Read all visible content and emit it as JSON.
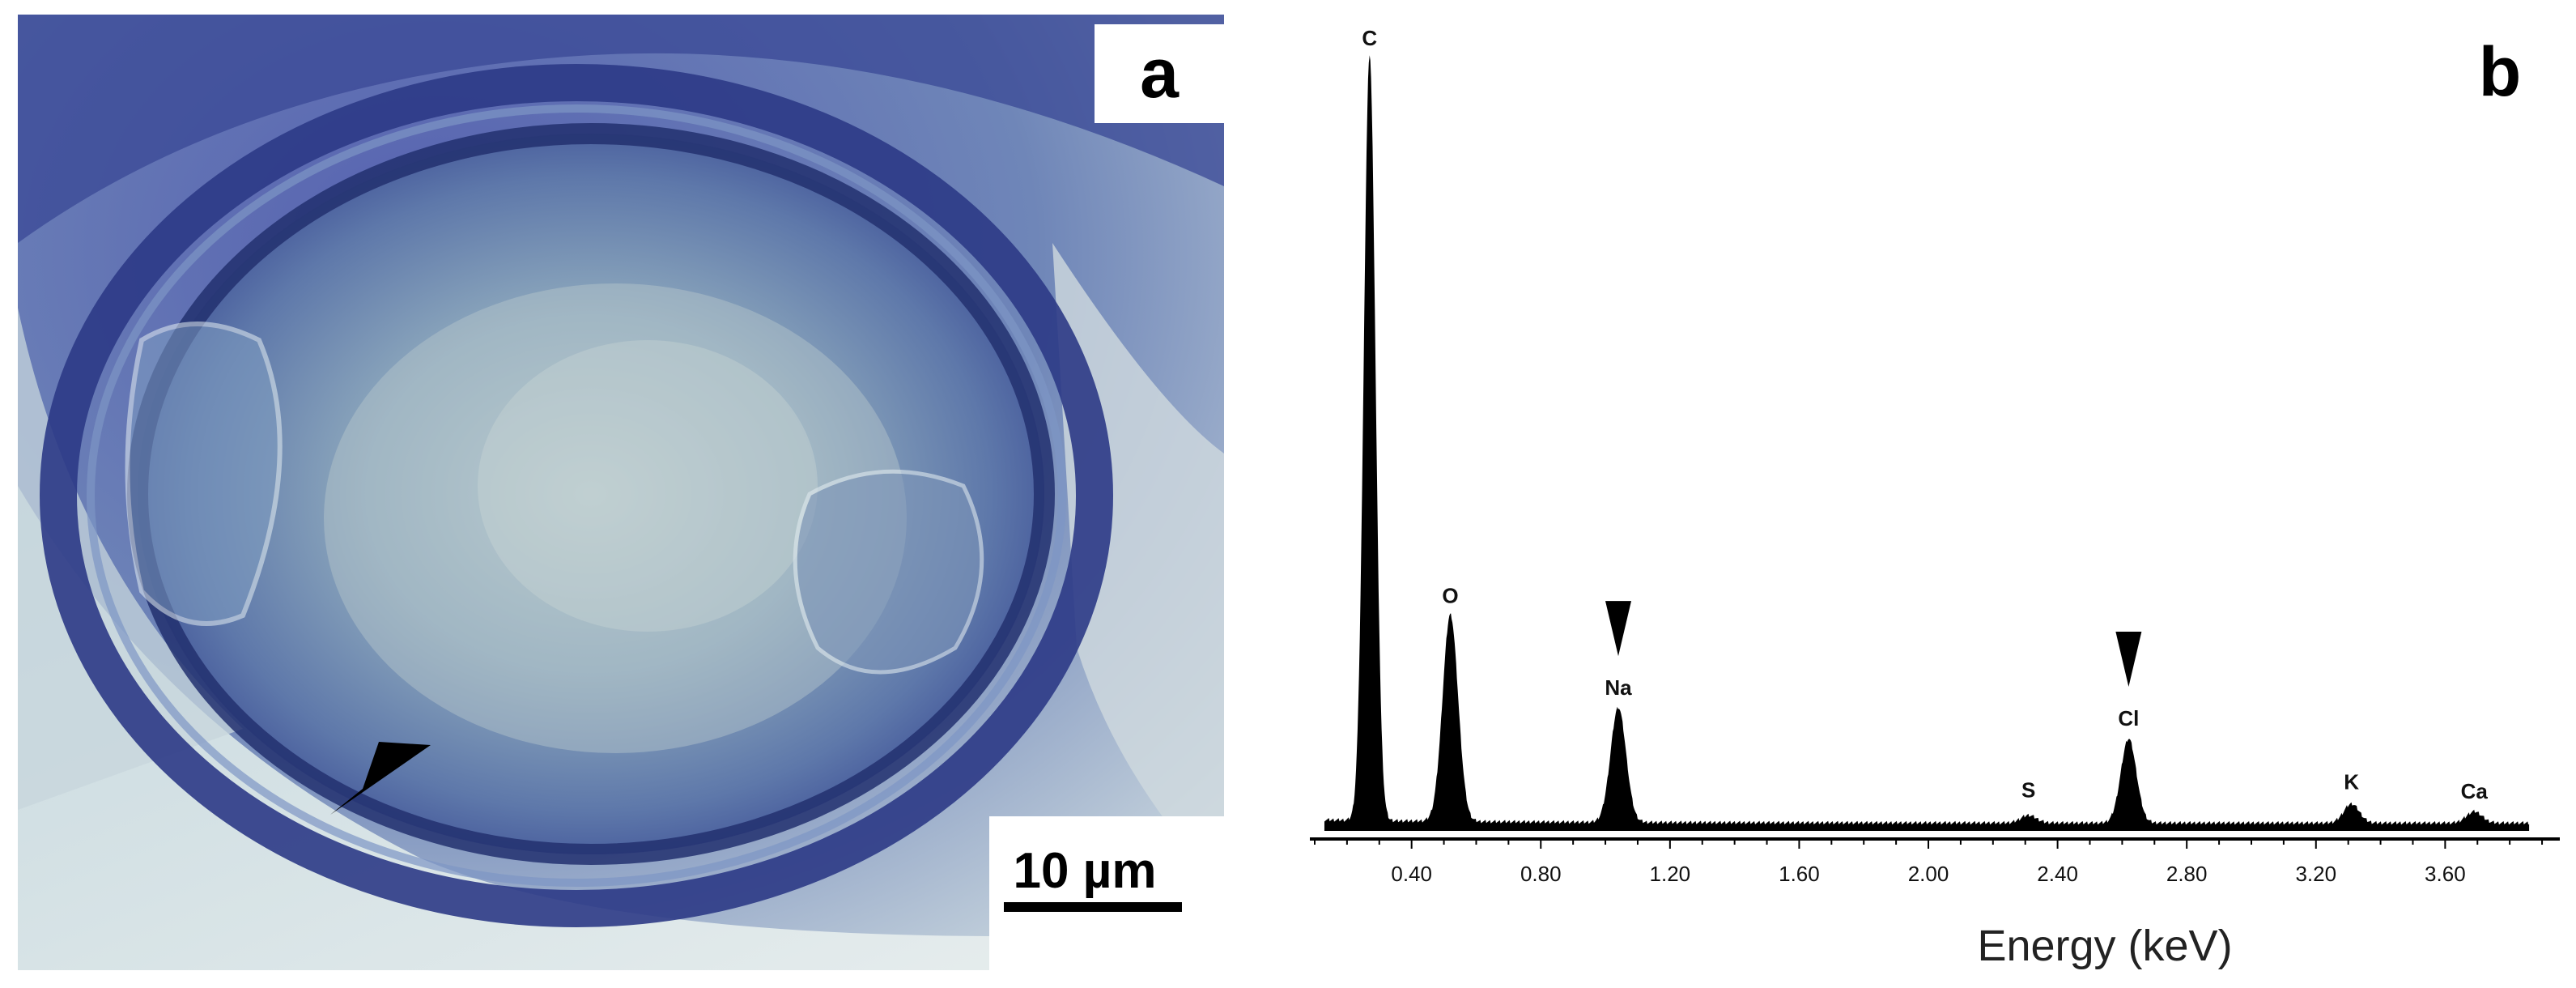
{
  "panel_a": {
    "label": "a",
    "scale_bar_text": "10 µm"
  },
  "panel_b": {
    "label": "b"
  },
  "chart_data": {
    "type": "line",
    "title": "",
    "xlabel": "Energy (keV)",
    "ylabel": "",
    "xlim": [
      0.0,
      4.0
    ],
    "x_ticks": [
      0.4,
      0.8,
      1.2,
      1.6,
      2.0,
      2.4,
      2.8,
      3.2,
      3.6
    ],
    "x_tick_labels": [
      "0.40",
      "0.80",
      "1.20",
      "1.60",
      "2.00",
      "2.40",
      "2.80",
      "3.20",
      "3.60"
    ],
    "grid": false,
    "peaks": [
      {
        "element": "C",
        "energy": 0.27,
        "intensity": 100
      },
      {
        "element": "O",
        "energy": 0.52,
        "intensity": 27
      },
      {
        "element": "Na",
        "energy": 1.04,
        "intensity": 15
      },
      {
        "element": "S",
        "energy": 2.31,
        "intensity": 1
      },
      {
        "element": "Cl",
        "energy": 2.62,
        "intensity": 11
      },
      {
        "element": "K",
        "energy": 3.31,
        "intensity": 2.5
      },
      {
        "element": "Ca",
        "energy": 3.69,
        "intensity": 1.5
      }
    ],
    "arrow_markers": [
      "Na",
      "Cl"
    ]
  },
  "colors": {
    "micrograph_blue": "#3f4fa0",
    "spectrum_fill": "#000000"
  }
}
